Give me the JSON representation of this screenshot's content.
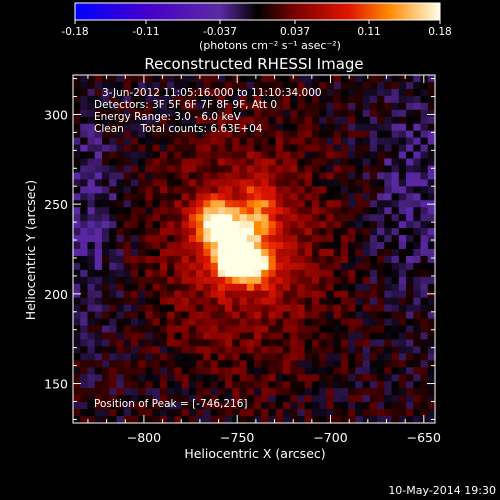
{
  "colorbar": {
    "min": -0.18,
    "max": 0.18,
    "tick_labels": [
      "-0.18",
      "-0.11",
      "-0.037",
      "0.037",
      "0.11",
      "0.18"
    ],
    "tick_values": [
      -0.18,
      -0.11,
      -0.037,
      0.037,
      0.11,
      0.18
    ],
    "units_label": "(photons cm⁻² s⁻¹ asec⁻²)",
    "stops": [
      {
        "v": -0.18,
        "color": "#0000ff"
      },
      {
        "v": -0.11,
        "color": "#4400cc"
      },
      {
        "v": -0.037,
        "color": "#5b2aa0"
      },
      {
        "v": 0.0,
        "color": "#000000"
      },
      {
        "v": 0.037,
        "color": "#7a0000"
      },
      {
        "v": 0.09,
        "color": "#e01500"
      },
      {
        "v": 0.13,
        "color": "#ff8a00"
      },
      {
        "v": 0.18,
        "color": "#ffffe6"
      }
    ]
  },
  "chart_data": {
    "type": "heatmap",
    "title": "Reconstructed RHESSI Image",
    "xlabel": "Heliocentric X (arcsec)",
    "ylabel": "Heliocentric Y (arcsec)",
    "xlim": [
      -838,
      -644
    ],
    "ylim": [
      128,
      322
    ],
    "x_ticks": [
      -800,
      -750,
      -700,
      -650
    ],
    "y_ticks": [
      150,
      200,
      250,
      300
    ],
    "x_tick_labels": [
      "−800",
      "−750",
      "−700",
      "−650"
    ],
    "y_tick_labels": [
      "150",
      "200",
      "250",
      "300"
    ],
    "annotations": [
      "3-Jun-2012 11:05:16.000 to 11:10:34.000",
      "Detectors: 3F 5F 6F 7F 8F 9F, Att 0",
      "Energy Range: 3.0 - 6.0 keV",
      "Clean     Total counts: 6.63E+04"
    ],
    "peak_label": "Position of Peak = [-746,216]",
    "peak": {
      "x": -746,
      "y": 216,
      "value": 0.18
    },
    "sources": [
      {
        "x": -746,
        "y": 216,
        "value": 0.18,
        "sx": 10,
        "sy": 7
      },
      {
        "x": -761,
        "y": 240,
        "value": 0.15,
        "sx": 8,
        "sy": 8
      },
      {
        "x": -752,
        "y": 228,
        "value": 0.11,
        "sx": 9,
        "sy": 10
      },
      {
        "x": -738,
        "y": 248,
        "value": 0.07,
        "sx": 6,
        "sy": 12
      },
      {
        "x": -746,
        "y": 225,
        "value": 0.065,
        "sx": 32,
        "sy": 42
      }
    ]
  },
  "footer": {
    "timestamp": "10-May-2014 19:30"
  }
}
